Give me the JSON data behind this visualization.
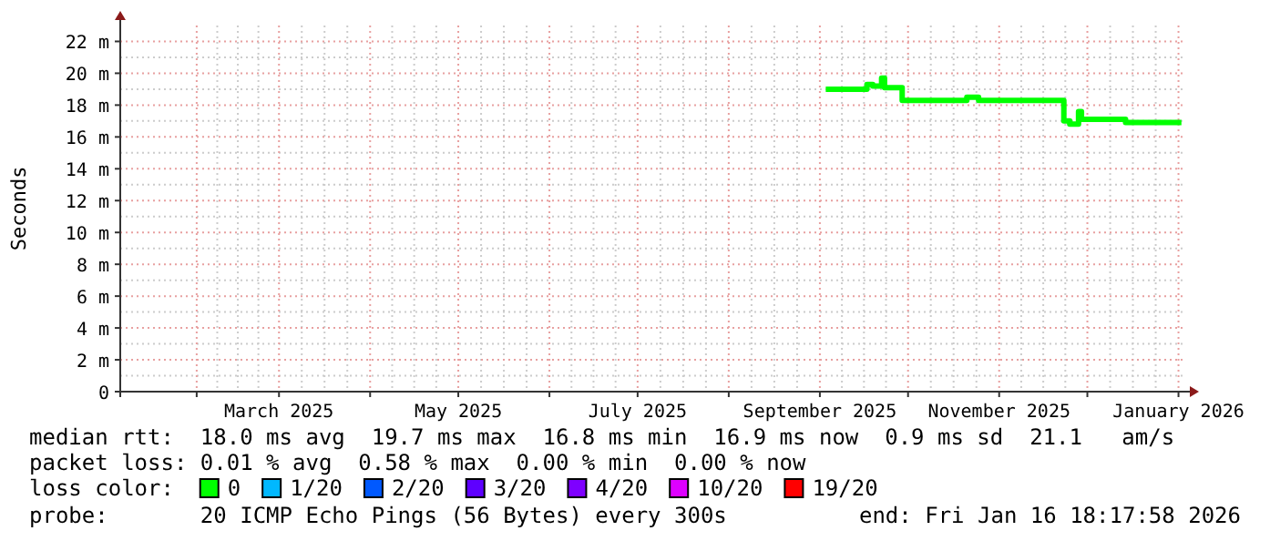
{
  "chart_data": {
    "type": "step",
    "ylabel": "Seconds",
    "x": [
      "2025-09-03",
      "2025-09-17",
      "2025-09-19",
      "2025-09-22",
      "2025-09-23",
      "2025-09-29",
      "2025-10-21",
      "2025-10-25",
      "2025-11-23",
      "2025-11-25",
      "2025-11-28",
      "2025-11-29",
      "2025-12-14",
      "2026-01-02"
    ],
    "series": [
      {
        "name": "0",
        "color": "#00ff00",
        "values": [
          19.0,
          19.3,
          19.2,
          19.7,
          19.1,
          18.3,
          18.5,
          18.3,
          17.0,
          16.8,
          17.6,
          17.1,
          16.9,
          16.9
        ]
      },
      {
        "name": "1/20",
        "color": "#00b8ff",
        "values": [
          null,
          null,
          null,
          null,
          null,
          null,
          null,
          null,
          null,
          null,
          null,
          null,
          null,
          null
        ]
      },
      {
        "name": "2/20",
        "color": "#0059ff",
        "values": [
          null,
          null,
          null,
          null,
          null,
          null,
          null,
          null,
          null,
          null,
          null,
          null,
          null,
          null
        ]
      },
      {
        "name": "3/20",
        "color": "#5e00ff",
        "values": [
          null,
          null,
          null,
          null,
          null,
          null,
          null,
          null,
          null,
          null,
          null,
          null,
          null,
          null
        ]
      },
      {
        "name": "4/20",
        "color": "#7e00ff",
        "values": [
          null,
          null,
          null,
          null,
          null,
          null,
          null,
          null,
          null,
          null,
          null,
          null,
          null,
          null
        ]
      },
      {
        "name": "10/20",
        "color": "#dd00ff",
        "values": [
          null,
          null,
          null,
          null,
          null,
          null,
          null,
          null,
          null,
          null,
          null,
          null,
          null,
          null
        ]
      },
      {
        "name": "19/20",
        "color": "#ff0000",
        "values": [
          null,
          null,
          null,
          null,
          null,
          null,
          null,
          null,
          null,
          null,
          null,
          null,
          null,
          null
        ]
      }
    ],
    "legend_title": "loss color:",
    "legend": "bottom",
    "xlim": [
      "2025-01-06",
      "2026-01-03"
    ],
    "xticks": [
      {
        "value": "2025-02-01",
        "label": null
      },
      {
        "value": "2025-03-01",
        "label": "March 2025"
      },
      {
        "value": "2025-04-01",
        "label": null
      },
      {
        "value": "2025-05-01",
        "label": "May 2025"
      },
      {
        "value": "2025-06-01",
        "label": null
      },
      {
        "value": "2025-07-01",
        "label": "July 2025"
      },
      {
        "value": "2025-08-01",
        "label": null
      },
      {
        "value": "2025-09-01",
        "label": "September 2025"
      },
      {
        "value": "2025-10-01",
        "label": null
      },
      {
        "value": "2025-11-01",
        "label": "November 2025"
      },
      {
        "value": "2025-12-01",
        "label": null
      },
      {
        "value": "2026-01-01",
        "label": "January 2026"
      }
    ],
    "ylim": [
      0,
      23
    ],
    "yticks": [
      0,
      {
        "value": 2,
        "label": "2 m"
      },
      {
        "value": 4,
        "label": "4 m"
      },
      {
        "value": 6,
        "label": "6 m"
      },
      {
        "value": 8,
        "label": "8 m"
      },
      {
        "value": 10,
        "label": "10 m"
      },
      {
        "value": 12,
        "label": "12 m"
      },
      {
        "value": 14,
        "label": "14 m"
      },
      {
        "value": 16,
        "label": "16 m"
      },
      {
        "value": 18,
        "label": "18 m"
      },
      {
        "value": 20,
        "label": "20 m"
      },
      {
        "value": 22,
        "label": "22 m"
      }
    ],
    "grid": true,
    "line_style": "solid",
    "annotations": [
      "median rtt:  18.0 ms avg  19.7 ms max  16.8 ms min  16.9 ms now  0.9 ms sd  21.1   am/s",
      "packet loss: 0.01 % avg  0.58 % max  0.00 % min  0.00 % now",
      "probe:       20 ICMP Echo Pings (56 Bytes) every 300s",
      "end: Fri Jan 16 18:17:58 2026"
    ]
  }
}
